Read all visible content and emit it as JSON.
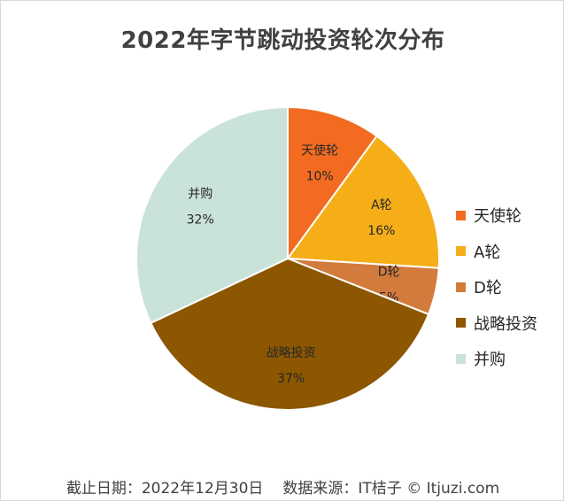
{
  "chart_data": {
    "type": "pie",
    "title": "2022年字节跳动投资轮次分布",
    "slices": [
      {
        "label": "天使轮",
        "value": 10,
        "value_label": "10%",
        "color": "#f26b21"
      },
      {
        "label": "A轮",
        "value": 16,
        "value_label": "16%",
        "color": "#f5ae17"
      },
      {
        "label": "D轮",
        "value": 5,
        "value_label": "5%",
        "color": "#d27b3c"
      },
      {
        "label": "战略投资",
        "value": 37,
        "value_label": "37%",
        "color": "#8c5700"
      },
      {
        "label": "并购",
        "value": 32,
        "value_label": "32%",
        "color": "#c9e3d9"
      }
    ],
    "legend_position": "right",
    "start_angle": "12 o'clock",
    "direction": "clockwise"
  },
  "footer": {
    "date_text": "截止日期：2022年12月30日",
    "source_text": "数据来源：IT桔子 © Itjuzi.com"
  }
}
